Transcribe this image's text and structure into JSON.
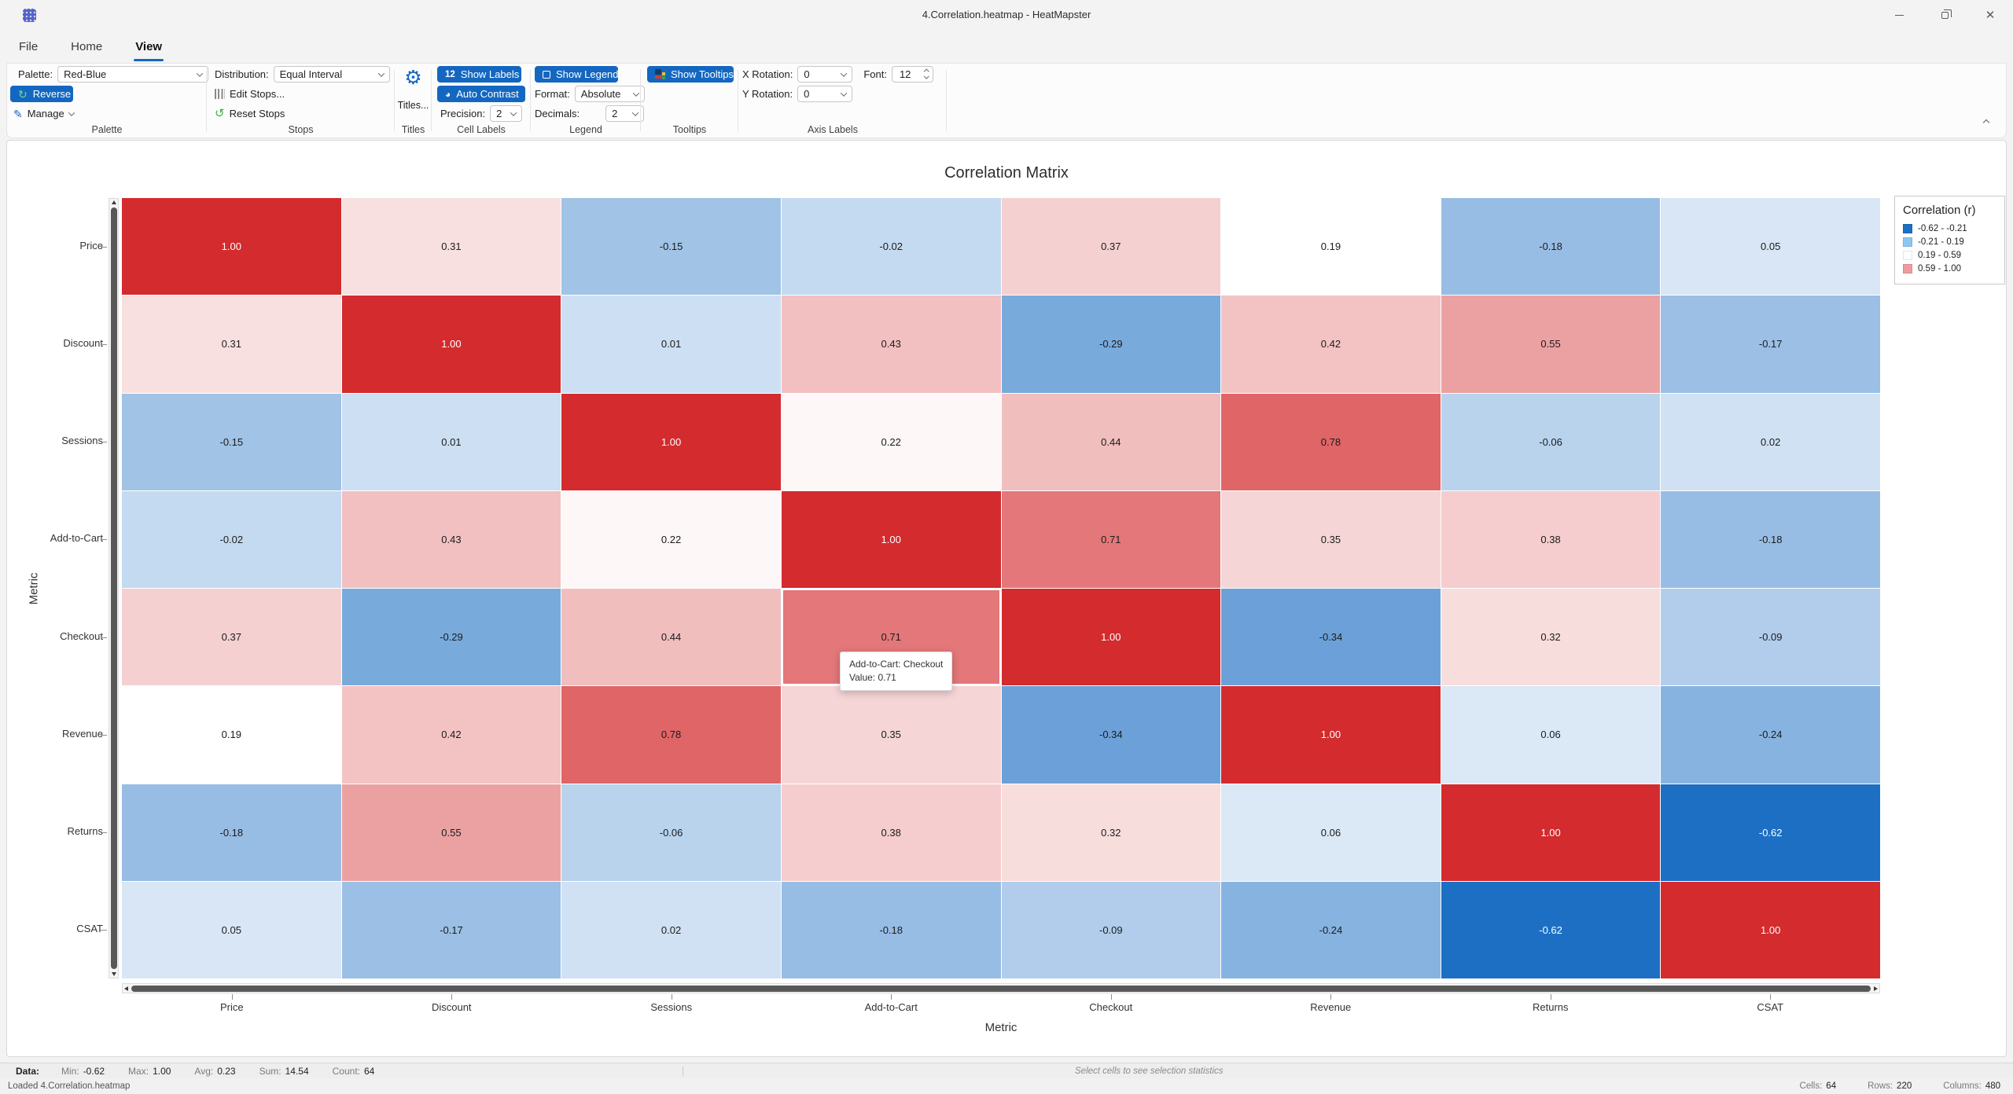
{
  "window": {
    "title": "4.Correlation.heatmap - HeatMapster"
  },
  "tabs": [
    {
      "label": "File"
    },
    {
      "label": "Home"
    },
    {
      "label": "View",
      "active": true
    }
  ],
  "ribbon": {
    "palette": {
      "group_label": "Palette",
      "palette_label": "Palette:",
      "palette_value": "Red-Blue",
      "reverse_label": "Reverse",
      "manage_label": "Manage"
    },
    "stops": {
      "group_label": "Stops",
      "distribution_label": "Distribution:",
      "distribution_value": "Equal Interval",
      "edit_stops_label": "Edit Stops...",
      "reset_stops_label": "Reset Stops"
    },
    "titles": {
      "group_label": "Titles",
      "button_label": "Titles..."
    },
    "cell_labels": {
      "group_label": "Cell Labels",
      "show_labels_badge": "12",
      "show_labels_label": "Show Labels",
      "auto_contrast_label": "Auto Contrast",
      "precision_label": "Precision:",
      "precision_value": "2"
    },
    "legend": {
      "group_label": "Legend",
      "show_legend_label": "Show Legend",
      "format_label": "Format:",
      "format_value": "Absolute",
      "decimals_label": "Decimals:",
      "decimals_value": "2"
    },
    "tooltips": {
      "group_label": "Tooltips",
      "show_tooltips_label": "Show Tooltips"
    },
    "axis_labels": {
      "group_label": "Axis Labels",
      "x_rotation_label": "X Rotation:",
      "x_rotation_value": "0",
      "y_rotation_label": "Y Rotation:",
      "y_rotation_value": "0",
      "font_label": "Font:",
      "font_value": "12"
    }
  },
  "chart_data": {
    "type": "heatmap",
    "title": "Correlation Matrix",
    "xlabel": "Metric",
    "ylabel": "Metric",
    "categories": [
      "Price",
      "Discount",
      "Sessions",
      "Add-to-Cart",
      "Checkout",
      "Revenue",
      "Returns",
      "CSAT"
    ],
    "matrix": [
      [
        1.0,
        0.31,
        -0.15,
        -0.02,
        0.37,
        0.19,
        -0.18,
        0.05
      ],
      [
        0.31,
        1.0,
        0.01,
        0.43,
        -0.29,
        0.42,
        0.55,
        -0.17
      ],
      [
        -0.15,
        0.01,
        1.0,
        0.22,
        0.44,
        0.78,
        -0.06,
        0.02
      ],
      [
        -0.02,
        0.43,
        0.22,
        1.0,
        0.71,
        0.35,
        0.38,
        -0.18
      ],
      [
        0.37,
        -0.29,
        0.44,
        0.71,
        1.0,
        -0.34,
        0.32,
        -0.09
      ],
      [
        0.19,
        0.42,
        0.78,
        0.35,
        -0.34,
        1.0,
        0.06,
        -0.24
      ],
      [
        -0.18,
        0.55,
        -0.06,
        0.38,
        0.32,
        0.06,
        1.0,
        -0.62
      ],
      [
        0.05,
        -0.17,
        0.02,
        -0.18,
        -0.09,
        -0.24,
        -0.62,
        1.0
      ]
    ],
    "color_scale": {
      "min": -0.62,
      "mid": 0.19,
      "max": 1.0,
      "blue": "#1d6fc4",
      "white": "#ffffff",
      "red": "#d32b2e"
    },
    "legend": {
      "title": "Correlation (r)",
      "items": [
        {
          "label": "-0.62 - -0.21",
          "color": "#1d6fc2"
        },
        {
          "label": "-0.21 - 0.19",
          "color": "#8ec6f0"
        },
        {
          "label": "0.19 - 0.59",
          "color": "#ffffff"
        },
        {
          "label": "0.59 - 1.00",
          "color": "#ee9ba0"
        }
      ]
    },
    "hover": {
      "row": 4,
      "col": 3,
      "tooltip_line1": "Add-to-Cart: Checkout",
      "tooltip_line2": "Value: 0.71"
    }
  },
  "statusbar": {
    "data_label": "Data:",
    "stats": [
      {
        "label": "Min:",
        "value": "-0.62"
      },
      {
        "label": "Max:",
        "value": "1.00"
      },
      {
        "label": "Avg:",
        "value": "0.23"
      },
      {
        "label": "Sum:",
        "value": "14.54"
      },
      {
        "label": "Count:",
        "value": "64"
      }
    ],
    "selection_hint": "Select cells to see selection statistics",
    "loaded_text": "Loaded 4.Correlation.heatmap",
    "right_stats": [
      {
        "label": "Cells:",
        "value": "64"
      },
      {
        "label": "Rows:",
        "value": "220"
      },
      {
        "label": "Columns:",
        "value": "480"
      }
    ]
  },
  "colors": {
    "accent": "#1467c0",
    "heat_red": "#d32b2e",
    "heat_blue": "#1d6fc4",
    "scroll_thumb": "#585858"
  }
}
